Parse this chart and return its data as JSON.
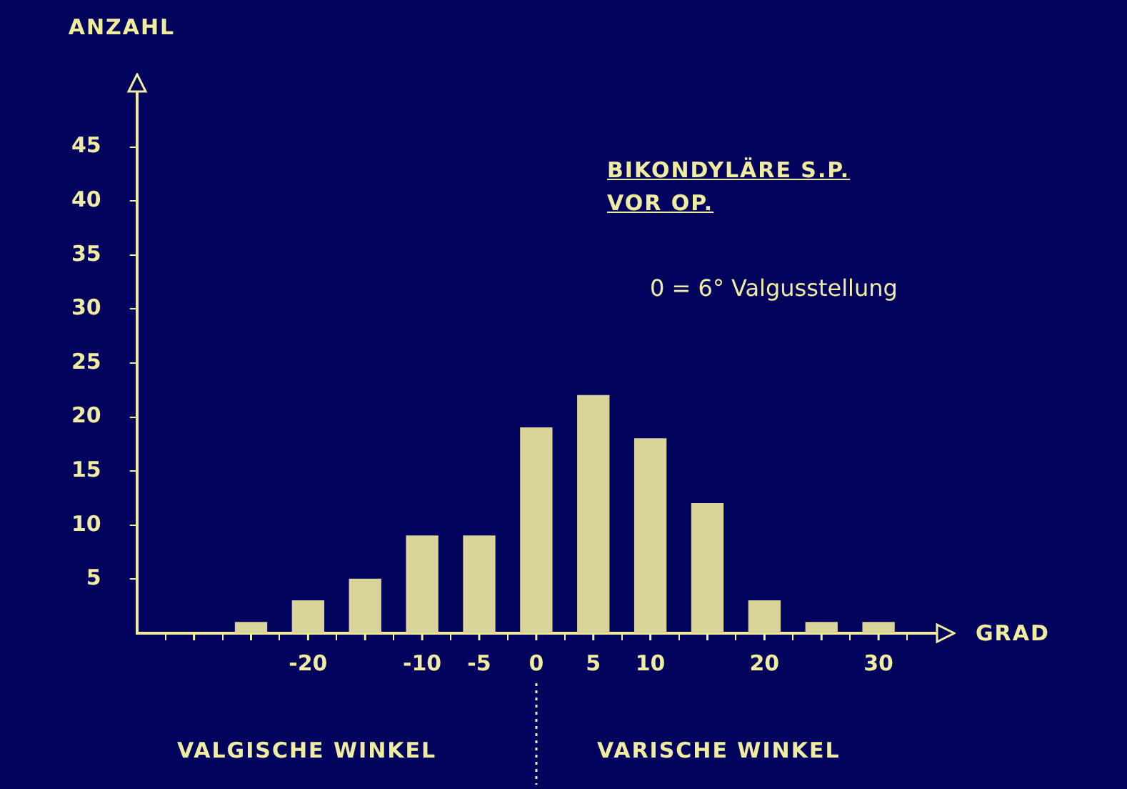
{
  "chart_data": {
    "type": "bar",
    "title": "BIKONDYLÄRE S.P.",
    "subtitle": "VOR OP.",
    "xlabel": "GRAD",
    "ylabel": "ANZAHL",
    "annotations": [
      "0 = 6° Valgusstellung",
      "VALGISCHE WINKEL",
      "VARISCHE WINKEL"
    ],
    "x": [
      -25,
      -20,
      -15,
      -10,
      -5,
      0,
      5,
      10,
      15,
      20,
      25,
      30
    ],
    "values": [
      1,
      3,
      5,
      9,
      9,
      19,
      22,
      18,
      12,
      3,
      1,
      1
    ],
    "color": "#d8d49a",
    "xlim": [
      -35,
      35
    ],
    "xticks": [
      {
        "value": -30,
        "label": null
      },
      {
        "value": -25,
        "label": null
      },
      -20,
      {
        "value": -15,
        "label": null
      },
      -10,
      -5,
      0,
      5,
      10,
      {
        "value": 15,
        "label": null
      },
      20,
      {
        "value": 25,
        "label": null
      },
      30
    ],
    "ylim": [
      0,
      50
    ],
    "yticks": [
      5,
      10,
      15,
      20,
      25,
      30,
      35,
      40,
      45
    ],
    "grid": false,
    "legend": false
  }
}
